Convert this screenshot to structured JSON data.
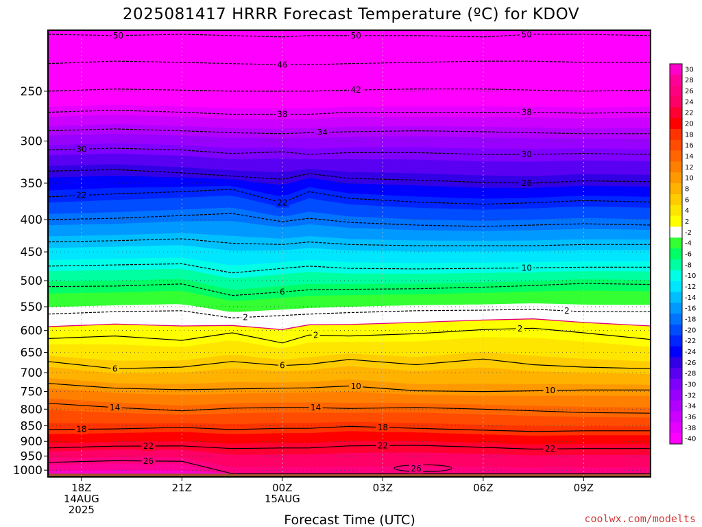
{
  "chart_data": {
    "type": "heatmap",
    "title": "2025081417 HRRR Forecast Temperature (ºC) for KDOV",
    "xlabel": "Forecast Time (UTC)",
    "credit": "coolwx.com/modelts",
    "x_ticks": [
      {
        "hour": 1,
        "lines": [
          "18Z",
          "14AUG",
          "2025"
        ]
      },
      {
        "hour": 4,
        "lines": [
          "21Z"
        ]
      },
      {
        "hour": 7,
        "lines": [
          "00Z",
          "15AUG"
        ]
      },
      {
        "hour": 10,
        "lines": [
          "03Z"
        ]
      },
      {
        "hour": 13,
        "lines": [
          "06Z"
        ]
      },
      {
        "hour": 16,
        "lines": [
          "09Z"
        ]
      }
    ],
    "xlim": [
      0,
      18
    ],
    "y_ticks": [
      250,
      300,
      350,
      400,
      450,
      500,
      550,
      600,
      650,
      700,
      750,
      800,
      850,
      900,
      950,
      1000
    ],
    "ylim": [
      200,
      1025
    ],
    "y_scale": "log-pressure",
    "ground_pressure": 1013,
    "colorbar": {
      "levels": [
        -40,
        -38,
        -36,
        -34,
        -32,
        -30,
        -28,
        -26,
        -24,
        -22,
        -20,
        -18,
        -16,
        -14,
        -12,
        -10,
        -8,
        -6,
        -4,
        -2,
        2,
        4,
        6,
        8,
        10,
        12,
        14,
        16,
        18,
        20,
        22,
        24,
        26,
        28,
        30
      ],
      "colors": [
        "#ff00ff",
        "#e600ff",
        "#cc00ff",
        "#b200ff",
        "#9900ff",
        "#7f00ff",
        "#5a00f2",
        "#3300e6",
        "#0000ff",
        "#0026ff",
        "#004cff",
        "#0073ff",
        "#0099ff",
        "#00bfff",
        "#00e6ff",
        "#00ffe6",
        "#00ffa0",
        "#00ff66",
        "#33ff33",
        "#ffffff",
        "#ffff00",
        "#ffe600",
        "#ffcc00",
        "#ffb200",
        "#ff9900",
        "#ff7f00",
        "#ff6600",
        "#ff4c00",
        "#ff3300",
        "#ff0000",
        "#ff0033",
        "#ff0066",
        "#ff0080",
        "#ff0099",
        "#ff00cc"
      ]
    },
    "series": [
      {
        "name": "",
        "hours": [
          0,
          2,
          4,
          5.5,
          7,
          7.8,
          9,
          11,
          13,
          14.5,
          16,
          18
        ],
        "values": [
          -50,
          -50,
          -50,
          -50,
          -50,
          -50,
          -50,
          -50,
          -50,
          -50,
          -50,
          -50
        ],
        "pressure": [
          203,
          204,
          203,
          204,
          205,
          204,
          204,
          204,
          205,
          203,
          203,
          204
        ]
      },
      {
        "name": "",
        "hours": [
          0,
          2,
          4,
          5.5,
          7,
          7.8,
          9,
          11,
          13,
          14.5,
          16,
          18
        ],
        "values": [
          -46,
          -46,
          -46,
          -46,
          -46,
          -46,
          -46,
          -46,
          -46,
          -46,
          -46,
          -46
        ],
        "pressure": [
          226,
          224,
          225,
          226,
          227,
          227,
          226,
          225,
          224,
          224,
          225,
          225
        ]
      },
      {
        "name": "",
        "hours": [
          0,
          2,
          4,
          5.5,
          7,
          7.8,
          9,
          11,
          13,
          14.5,
          16,
          18
        ],
        "values": [
          -42,
          -42,
          -42,
          -42,
          -42,
          -42,
          -42,
          -42,
          -42,
          -42,
          -42,
          -42
        ],
        "pressure": [
          250,
          248,
          249,
          250,
          250,
          250,
          249,
          248,
          248,
          249,
          250,
          249
        ]
      },
      {
        "name": "",
        "hours": [
          0,
          2,
          4,
          5.5,
          7,
          7.8,
          9,
          11,
          13,
          14.5,
          16,
          18
        ],
        "values": [
          -38,
          -38,
          -38,
          -38,
          -38,
          -38,
          -38,
          -38,
          -38,
          -38,
          -38,
          -38
        ],
        "pressure": [
          270,
          268,
          270,
          272,
          272,
          272,
          270,
          270,
          270,
          270,
          271,
          270
        ]
      },
      {
        "name": "",
        "hours": [
          0,
          2,
          4,
          5.5,
          7,
          7.8,
          9,
          11,
          13,
          14.5,
          16,
          18
        ],
        "values": [
          -34,
          -34,
          -34,
          -34,
          -34,
          -34,
          -34,
          -34,
          -34,
          -34,
          -34,
          -34
        ],
        "pressure": [
          289,
          287,
          289,
          291,
          292,
          291,
          290,
          289,
          290,
          291,
          292,
          292
        ]
      },
      {
        "name": "",
        "hours": [
          0,
          2,
          4,
          5.5,
          7,
          7.8,
          9,
          11,
          13,
          14.5,
          16,
          18
        ],
        "values": [
          -30,
          -30,
          -30,
          -30,
          -30,
          -30,
          -30,
          -30,
          -30,
          -30,
          -30,
          -30
        ],
        "pressure": [
          310,
          308,
          310,
          314,
          312,
          315,
          313,
          313,
          315,
          315,
          314,
          315
        ]
      },
      {
        "name": "",
        "hours": [
          0,
          2,
          4,
          5.5,
          7,
          7.8,
          9,
          11,
          13,
          14.5,
          16,
          18
        ],
        "values": [
          -26,
          -26,
          -26,
          -26,
          -26,
          -26,
          -26,
          -26,
          -26,
          -26,
          -26,
          -26
        ],
        "pressure": [
          335,
          333,
          337,
          341,
          345,
          338,
          344,
          346,
          349,
          350,
          347,
          348
        ]
      },
      {
        "name": "",
        "hours": [
          0,
          2,
          4,
          5.5,
          7,
          7.8,
          9,
          11,
          13,
          14.5,
          16,
          18
        ],
        "values": [
          -22,
          -22,
          -22,
          -22,
          -22,
          -22,
          -22,
          -22,
          -22,
          -22,
          -22,
          -22
        ],
        "pressure": [
          368,
          364,
          361,
          358,
          376,
          361,
          370,
          375,
          378,
          376,
          373,
          375
        ]
      },
      {
        "name": "",
        "hours": [
          0,
          2,
          4,
          5.5,
          7,
          7.8,
          9,
          11,
          13,
          14.5,
          16,
          18
        ],
        "values": [
          -18,
          -18,
          -18,
          -18,
          -18,
          -18,
          -18,
          -18,
          -18,
          -18,
          -18,
          -18
        ],
        "pressure": [
          400,
          398,
          394,
          391,
          403,
          398,
          404,
          408,
          410,
          408,
          406,
          408
        ]
      },
      {
        "name": "",
        "hours": [
          0,
          2,
          4,
          5.5,
          7,
          7.8,
          9,
          11,
          13,
          14.5,
          16,
          18
        ],
        "values": [
          -14,
          -14,
          -14,
          -14,
          -14,
          -14,
          -14,
          -14,
          -14,
          -14,
          -14,
          -14
        ],
        "pressure": [
          434,
          432,
          429,
          436,
          438,
          434,
          438,
          440,
          440,
          440,
          438,
          438
        ]
      },
      {
        "name": "",
        "hours": [
          0,
          2,
          4,
          5.5,
          7,
          7.8,
          9,
          11,
          13,
          14.5,
          16,
          18
        ],
        "values": [
          -10,
          -10,
          -10,
          -10,
          -10,
          -10,
          -10,
          -10,
          -10,
          -10,
          -10,
          -10
        ],
        "pressure": [
          474,
          472,
          470,
          486,
          478,
          474,
          478,
          479,
          478,
          477,
          476,
          476
        ]
      },
      {
        "name": "",
        "hours": [
          0,
          2,
          4,
          5.5,
          7,
          7.8,
          9,
          11,
          13,
          14.5,
          16,
          18
        ],
        "values": [
          -6,
          -6,
          -6,
          -6,
          -6,
          -6,
          -6,
          -6,
          -6,
          -6,
          -6,
          -6
        ],
        "pressure": [
          511,
          510,
          506,
          528,
          521,
          517,
          516,
          515,
          512,
          509,
          505,
          507
        ]
      },
      {
        "name": "",
        "hours": [
          0,
          2,
          4,
          5.5,
          7,
          7.8,
          9,
          11,
          13,
          14.5,
          16,
          18
        ],
        "values": [
          -2,
          -2,
          -2,
          -2,
          -2,
          -2,
          -2,
          -2,
          -2,
          -2,
          -2,
          -2
        ],
        "pressure": [
          565,
          560,
          558,
          573,
          568,
          565,
          562,
          558,
          557,
          555,
          560,
          560
        ]
      },
      {
        "name": "",
        "hours": [
          0,
          2,
          4,
          5.5,
          7,
          7.8,
          9,
          11,
          13,
          14.5,
          16,
          18
        ],
        "values": [
          2,
          2,
          2,
          2,
          2,
          2,
          2,
          2,
          2,
          2,
          2,
          2
        ],
        "pressure": [
          618,
          612,
          622,
          605,
          628,
          610,
          612,
          607,
          598,
          595,
          605,
          620
        ]
      },
      {
        "name": "",
        "hours": [
          0,
          2,
          4,
          5.5,
          7,
          7.8,
          9,
          11,
          13,
          14.5,
          16,
          18
        ],
        "values": [
          6,
          6,
          6,
          6,
          6,
          6,
          6,
          6,
          6,
          6,
          6,
          6
        ],
        "pressure": [
          672,
          690,
          686,
          672,
          682,
          679,
          667,
          680,
          666,
          680,
          686,
          690
        ]
      },
      {
        "name": "",
        "hours": [
          0,
          2,
          4,
          5.5,
          7,
          7.8,
          9,
          11,
          13,
          14.5,
          16,
          18
        ],
        "values": [
          10,
          10,
          10,
          10,
          10,
          10,
          10,
          10,
          10,
          10,
          10,
          10
        ],
        "pressure": [
          728,
          741,
          745,
          743,
          741,
          740,
          735,
          748,
          750,
          748,
          746,
          746
        ]
      },
      {
        "name": "",
        "hours": [
          0,
          2,
          4,
          5.5,
          7,
          7.8,
          9,
          11,
          13,
          14.5,
          16,
          18
        ],
        "values": [
          14,
          14,
          14,
          14,
          14,
          14,
          14,
          14,
          14,
          14,
          14,
          14
        ],
        "pressure": [
          783,
          795,
          805,
          797,
          795,
          795,
          798,
          795,
          800,
          805,
          810,
          812
        ]
      },
      {
        "name": "",
        "hours": [
          0,
          2,
          4,
          5.5,
          7,
          7.8,
          9,
          11,
          13,
          14.5,
          16,
          18
        ],
        "values": [
          18,
          18,
          18,
          18,
          18,
          18,
          18,
          18,
          18,
          18,
          18,
          18
        ],
        "pressure": [
          862,
          860,
          855,
          862,
          858,
          858,
          852,
          858,
          864,
          868,
          866,
          866
        ]
      },
      {
        "name": "",
        "hours": [
          0,
          2,
          4,
          5.5,
          7,
          7.8,
          9,
          11,
          13,
          14.5,
          16,
          18
        ],
        "values": [
          22,
          22,
          22,
          22,
          22,
          22,
          22,
          22,
          22,
          22,
          22,
          22
        ],
        "pressure": [
          922,
          916,
          915,
          924,
          922,
          922,
          915,
          913,
          920,
          926,
          924,
          924
        ]
      },
      {
        "name": "",
        "hours": [
          0,
          2,
          4,
          5.5,
          7,
          7.8,
          9,
          11,
          13,
          14.5,
          16,
          18
        ],
        "values": [
          26,
          26,
          26,
          26,
          26,
          26,
          26,
          26,
          26,
          26,
          26,
          26
        ],
        "pressure": [
          972,
          966,
          968,
          1013,
          1013,
          1013,
          1013,
          1013,
          1013,
          1013,
          1013,
          1013
        ]
      }
    ],
    "contour_labels": [
      {
        "hour": 2.1,
        "value": -50,
        "text": "50"
      },
      {
        "hour": 9.2,
        "value": -50,
        "text": "50"
      },
      {
        "hour": 14.3,
        "value": -50,
        "text": "50"
      },
      {
        "hour": 7,
        "value": -46,
        "text": "46"
      },
      {
        "hour": 9.2,
        "value": -42,
        "text": "42"
      },
      {
        "hour": 7,
        "value": -38,
        "text": "38"
      },
      {
        "hour": 14.3,
        "value": -38,
        "text": "38"
      },
      {
        "hour": 8.2,
        "value": -34,
        "text": "34"
      },
      {
        "hour": 1,
        "value": -30,
        "text": "30"
      },
      {
        "hour": 14.3,
        "value": -30,
        "text": "30"
      },
      {
        "hour": 14.3,
        "value": -26,
        "text": "26"
      },
      {
        "hour": 1,
        "value": -22,
        "text": "22"
      },
      {
        "hour": 7,
        "value": -22,
        "text": "22"
      },
      {
        "hour": 14.3,
        "value": -10,
        "text": "10"
      },
      {
        "hour": 7,
        "value": -6,
        "text": "6"
      },
      {
        "hour": 5.9,
        "value": -2,
        "text": "2"
      },
      {
        "hour": 15.5,
        "value": -2,
        "text": "2"
      },
      {
        "hour": 8,
        "value": 2,
        "text": "2"
      },
      {
        "hour": 14.1,
        "value": 2,
        "text": "2"
      },
      {
        "hour": 2,
        "value": 6,
        "text": "6"
      },
      {
        "hour": 7,
        "value": 6,
        "text": "6"
      },
      {
        "hour": 9.2,
        "value": 10,
        "text": "10"
      },
      {
        "hour": 15,
        "value": 10,
        "text": "10"
      },
      {
        "hour": 2,
        "value": 14,
        "text": "14"
      },
      {
        "hour": 8,
        "value": 14,
        "text": "14"
      },
      {
        "hour": 1,
        "value": 18,
        "text": "18"
      },
      {
        "hour": 10,
        "value": 18,
        "text": "18"
      },
      {
        "hour": 3,
        "value": 22,
        "text": "22"
      },
      {
        "hour": 10,
        "value": 22,
        "text": "22"
      },
      {
        "hour": 15,
        "value": 22,
        "text": "22"
      },
      {
        "hour": 3,
        "value": 26,
        "text": "26"
      },
      {
        "hour": 11,
        "value": 26,
        "text": "26",
        "pressure": 995
      }
    ]
  }
}
